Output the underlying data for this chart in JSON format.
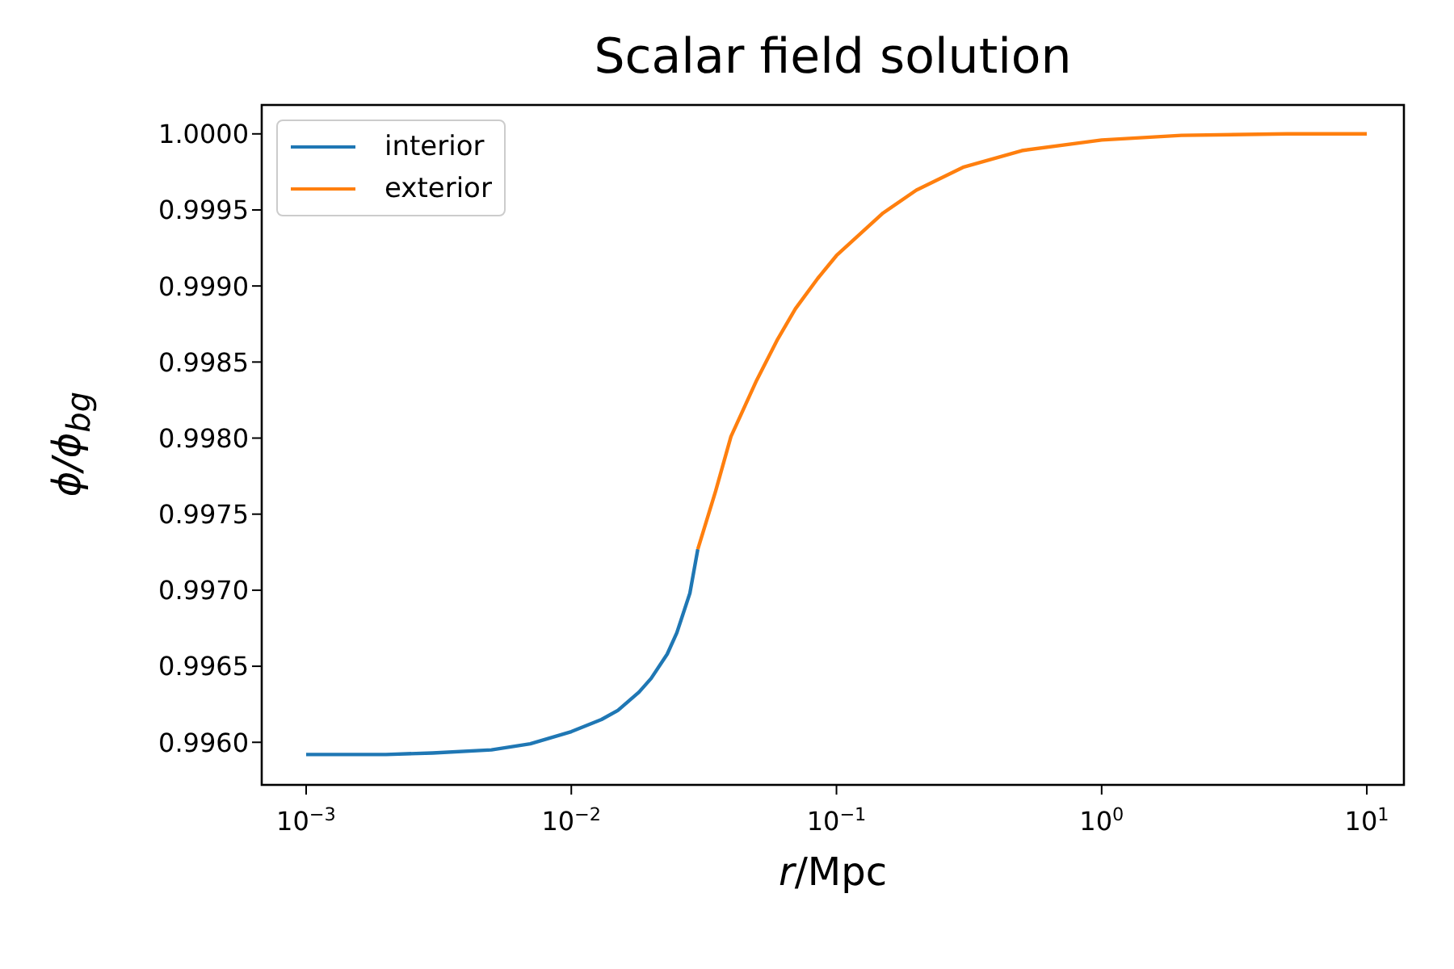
{
  "chart_data": {
    "type": "line",
    "title": "Scalar field solution",
    "xlabel": "r/Mpc",
    "ylabel": "ϕ/ϕ$_{bg}$",
    "series": [
      {
        "name": "interior",
        "color": "#1f77b4",
        "x": [
          0.001,
          0.002,
          0.003,
          0.005,
          0.007,
          0.01,
          0.013,
          0.015,
          0.018,
          0.02,
          0.023,
          0.025,
          0.028,
          0.03
        ],
        "values": [
          0.99592,
          0.99592,
          0.99593,
          0.99595,
          0.99599,
          0.99607,
          0.99615,
          0.99621,
          0.99633,
          0.99642,
          0.99658,
          0.99672,
          0.99698,
          0.99727
        ]
      },
      {
        "name": "exterior",
        "color": "#ff7f0e",
        "x": [
          0.03,
          0.035,
          0.04,
          0.05,
          0.06,
          0.07,
          0.085,
          0.1,
          0.15,
          0.2,
          0.3,
          0.5,
          1,
          2,
          5,
          10
        ],
        "values": [
          0.99727,
          0.99765,
          0.99801,
          0.99838,
          0.99865,
          0.99885,
          0.99905,
          0.9992,
          0.99948,
          0.99963,
          0.99978,
          0.99989,
          0.99996,
          0.99999,
          1.0,
          1.0
        ]
      }
    ],
    "log": "x",
    "xlim": [
      0.00068,
      13.8
    ],
    "xticks": [
      {
        "value": 0.001,
        "label": "10$^{−3}$"
      },
      {
        "value": 0.01,
        "label": "10$^{−2}$"
      },
      {
        "value": 0.1,
        "label": "10$^{−1}$"
      },
      {
        "value": 1,
        "label": "10$^{0}$"
      },
      {
        "value": 10,
        "label": "10$^{1}$"
      }
    ],
    "ylim": [
      0.99572,
      1.00019
    ],
    "yticks": [
      {
        "value": 0.996,
        "label": "0.9960"
      },
      {
        "value": 0.9965,
        "label": "0.9965"
      },
      {
        "value": 0.997,
        "label": "0.9970"
      },
      {
        "value": 0.9975,
        "label": "0.9975"
      },
      {
        "value": 0.998,
        "label": "0.9980"
      },
      {
        "value": 0.9985,
        "label": "0.9985"
      },
      {
        "value": 0.999,
        "label": "0.9990"
      },
      {
        "value": 0.9995,
        "label": "0.9995"
      },
      {
        "value": 1,
        "label": "1.0000"
      }
    ],
    "legend": "top left",
    "marker": "none",
    "line_style": "solid"
  }
}
